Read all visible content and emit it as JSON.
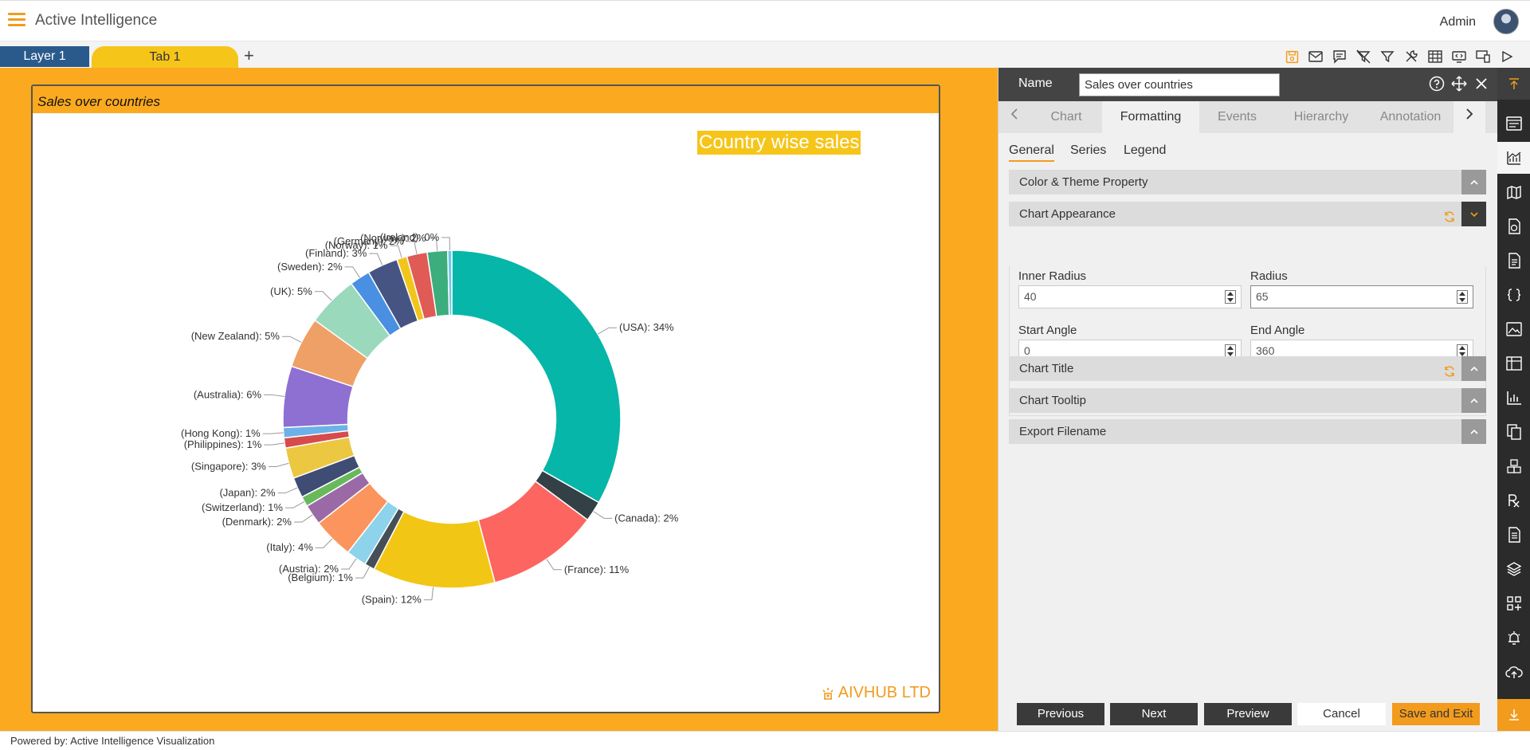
{
  "app": {
    "title": "Active Intelligence",
    "user": "Admin"
  },
  "tabs": {
    "layer": "Layer 1",
    "main": "Tab 1",
    "add": "+"
  },
  "toolbar_icons": [
    "save-icon",
    "mail-icon",
    "comment-icon",
    "clear-filter-icon",
    "filter-icon",
    "settings-icon",
    "table-icon",
    "embed-icon",
    "devices-icon",
    "play-icon"
  ],
  "widget": {
    "header": "Sales over countries",
    "brand": "AIVHUB LTD"
  },
  "chart_data": {
    "type": "pie",
    "title": "Country wise sales",
    "inner_radius_percent": 40,
    "radius_percent": 65,
    "slices": [
      {
        "label": "(USA): 34%",
        "value": 34,
        "color": "#06b6a8"
      },
      {
        "label": "(Canada): 2%",
        "value": 2,
        "color": "#334045"
      },
      {
        "label": "(France): 11%",
        "value": 11,
        "color": "#fd6560"
      },
      {
        "label": "(Spain): 12%",
        "value": 12,
        "color": "#f2c615"
      },
      {
        "label": "(Belgium): 1%",
        "value": 1,
        "color": "#454f58"
      },
      {
        "label": "(Austria): 2%",
        "value": 2,
        "color": "#8dd3ec"
      },
      {
        "label": "(Italy): 4%",
        "value": 4,
        "color": "#fc945d"
      },
      {
        "label": "(Denmark): 2%",
        "value": 2,
        "color": "#9a6aa6"
      },
      {
        "label": "(Switzerland): 1%",
        "value": 1,
        "color": "#68b95c"
      },
      {
        "label": "(Japan): 2%",
        "value": 2,
        "color": "#3f4c73"
      },
      {
        "label": "(Singapore): 3%",
        "value": 3,
        "color": "#ecc742"
      },
      {
        "label": "(Philippines): 1%",
        "value": 1,
        "color": "#d64b4b"
      },
      {
        "label": "(Hong Kong): 1%",
        "value": 1,
        "color": "#6cb1e8"
      },
      {
        "label": "(Australia): 6%",
        "value": 6,
        "color": "#8e6fd2"
      },
      {
        "label": "(New Zealand): 5%",
        "value": 5,
        "color": "#efa066"
      },
      {
        "label": "(UK): 5%",
        "value": 5,
        "color": "#9ad9bc"
      },
      {
        "label": "(Sweden): 2%",
        "value": 2,
        "color": "#4a90e2"
      },
      {
        "label": "(Finland): 3%",
        "value": 3,
        "color": "#465484"
      },
      {
        "label": "(Norway): 1%",
        "value": 1,
        "color": "#f2c51b"
      },
      {
        "label": "(Germany): 2%",
        "value": 2,
        "color": "#e05a56"
      },
      {
        "label": "(Norway ): 2%",
        "value": 2,
        "color": "#3cad7d"
      },
      {
        "label": "(Ireland): 0%",
        "value": 0.4,
        "color": "#6fc7e9"
      }
    ]
  },
  "panel": {
    "name_label": "Name",
    "name_value": "Sales over countries",
    "tabs": [
      "Chart",
      "Formatting",
      "Events",
      "Hierarchy",
      "Annotation"
    ],
    "subtabs": [
      "General",
      "Series",
      "Legend"
    ],
    "sections": {
      "color_theme": "Color & Theme Property",
      "appearance": "Chart Appearance",
      "title": "Chart Title",
      "tooltip": "Chart Tooltip",
      "export": "Export Filename"
    },
    "fields": {
      "inner_radius": {
        "label": "Inner Radius",
        "value": "40"
      },
      "radius": {
        "label": "Radius",
        "value": "65"
      },
      "start_angle": {
        "label": "Start Angle",
        "value": "0"
      },
      "end_angle": {
        "label": "End Angle",
        "value": "360"
      }
    },
    "buttons": {
      "previous": "Previous",
      "next": "Next",
      "preview": "Preview",
      "cancel": "Cancel",
      "save": "Save and Exit"
    }
  },
  "sidebar_icons": [
    "collapse-up-icon",
    "properties-icon",
    "chart-icon",
    "map-icon",
    "report-icon",
    "document-icon",
    "code-icon",
    "image-icon",
    "table-icon",
    "bar-chart-icon",
    "copy-icon",
    "cubes-icon",
    "formula-icon",
    "notes-icon",
    "layers-icon",
    "add-widget-icon",
    "alarm-icon",
    "cloud-upload-icon",
    "download-icon"
  ],
  "footer": "Powered by: Active Intelligence Visualization"
}
